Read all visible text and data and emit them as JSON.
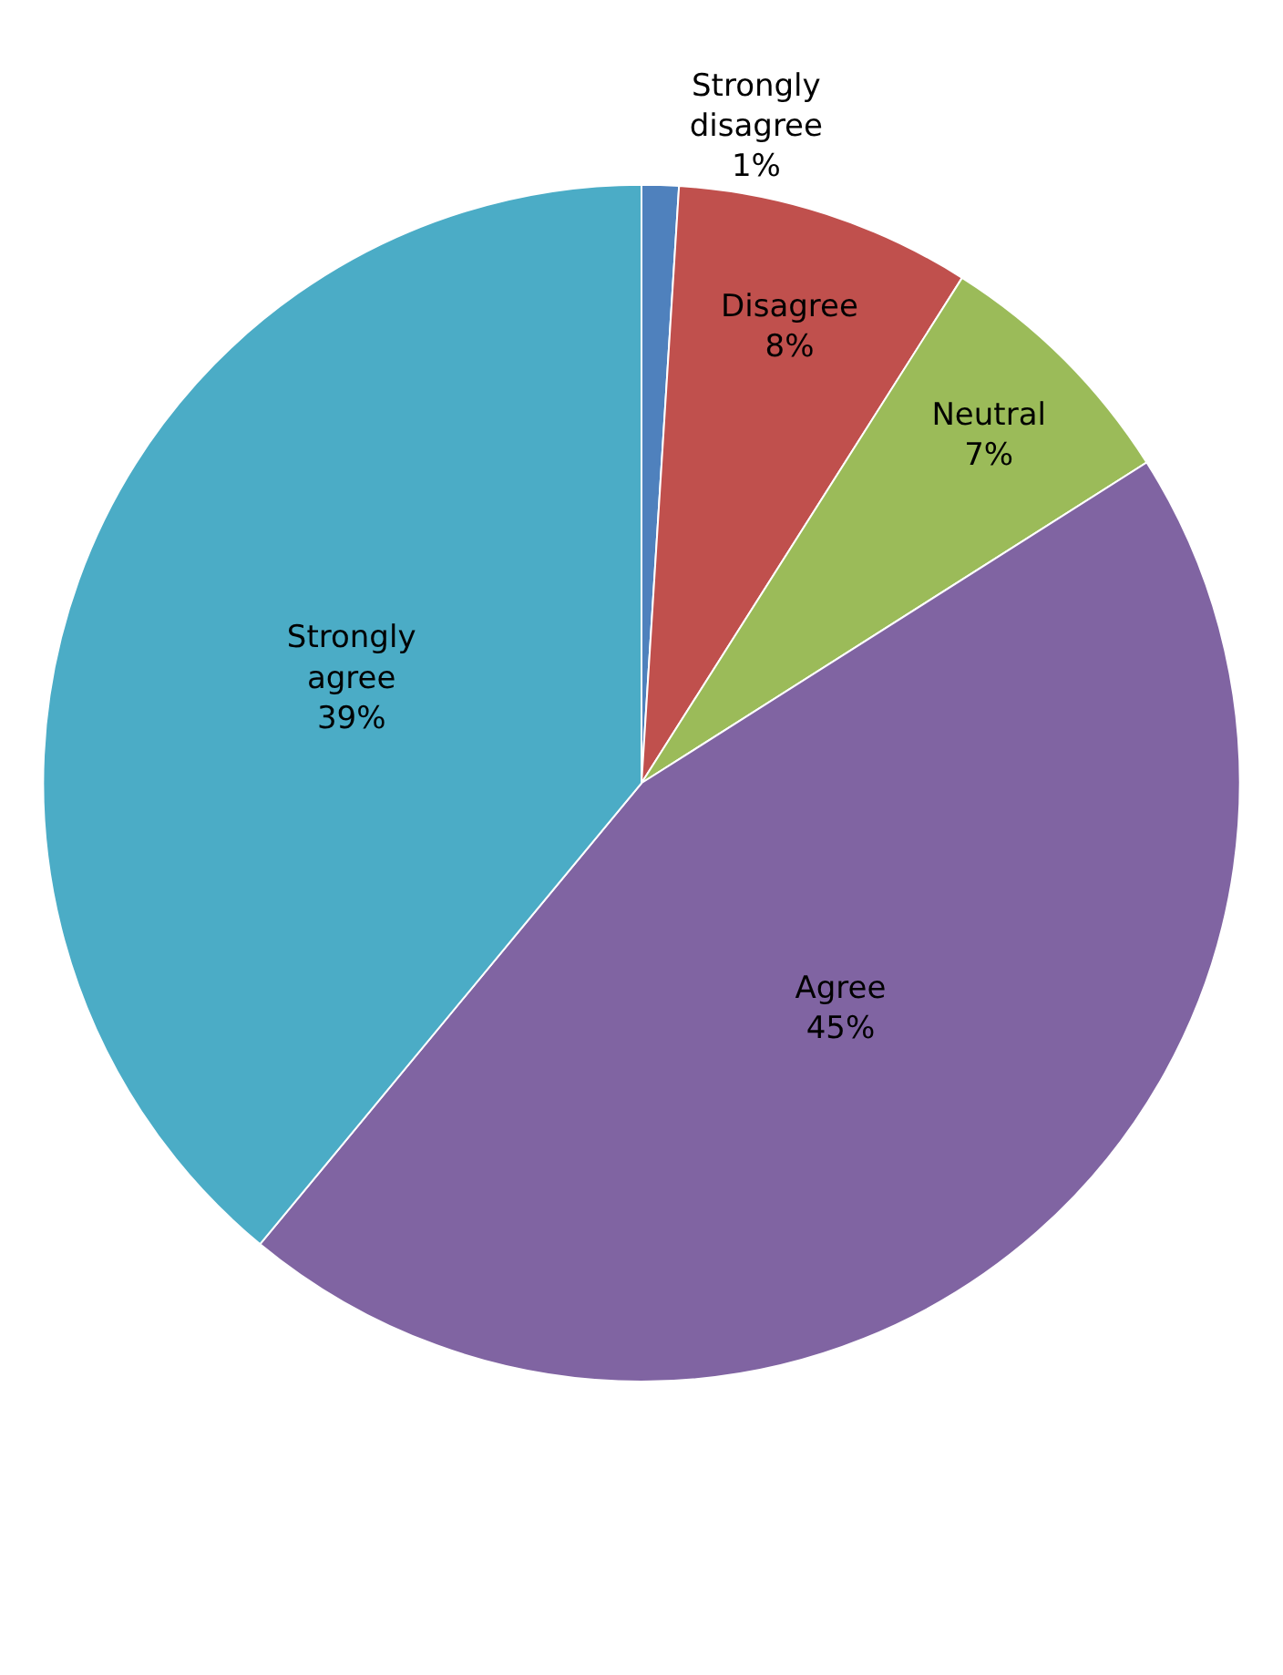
{
  "chart_data": {
    "type": "pie",
    "categories": [
      "Strongly disagree",
      "Disagree",
      "Neutral",
      "Agree",
      "Strongly agree"
    ],
    "values": [
      1,
      8,
      7,
      45,
      39
    ],
    "value_labels": [
      "1%",
      "8%",
      "7%",
      "45%",
      "39%"
    ],
    "colors": [
      "#4f81bd",
      "#c0504d",
      "#9bbb59",
      "#8064a2",
      "#4bacc6"
    ],
    "legend": false
  }
}
